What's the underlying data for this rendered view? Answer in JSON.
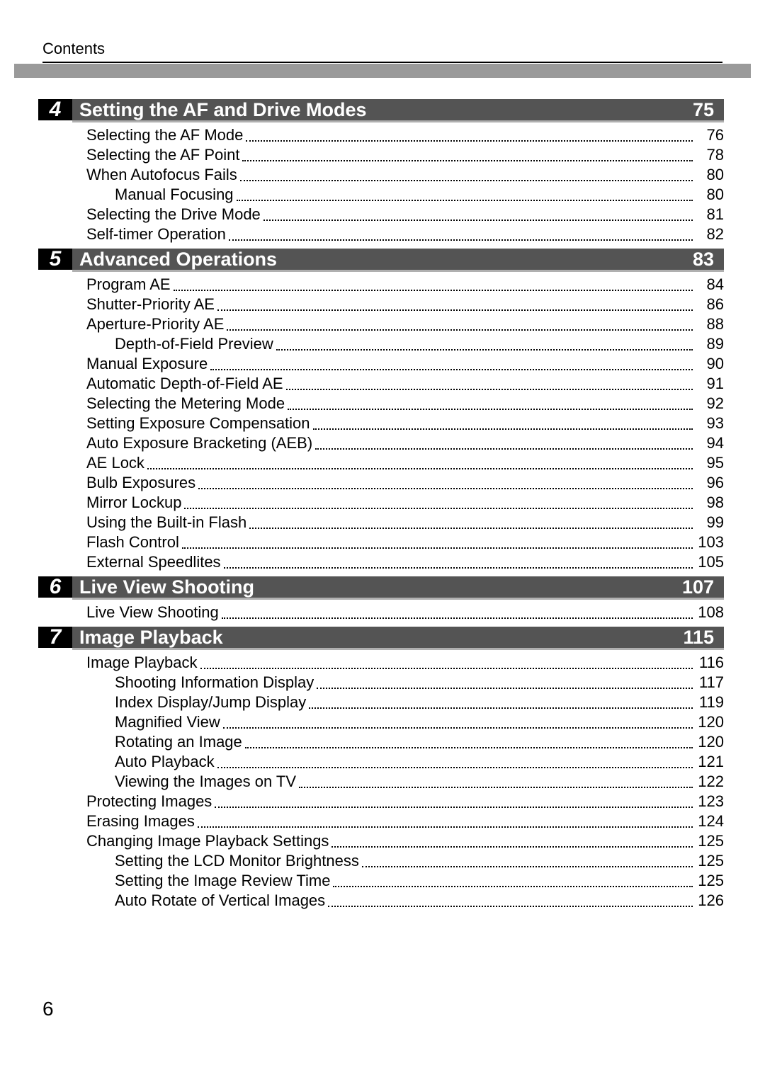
{
  "header": {
    "label": "Contents"
  },
  "page_number": "6",
  "colors": {
    "grey_bar": "#9a9a9a",
    "chapter_num_bg": "#000000",
    "chapter_title_bg": "#545454",
    "chapter_title_underline": "#b0b0b0",
    "text": "#000000"
  },
  "typography": {
    "body_fontsize": 22,
    "chapter_title_fontsize": 27,
    "chapter_num_fontsize": 30
  },
  "chapters": [
    {
      "number": "4",
      "title": "Setting the AF and Drive Modes",
      "page": "75",
      "entries": [
        {
          "label": "Selecting the AF Mode",
          "page": "76",
          "level": 0
        },
        {
          "label": "Selecting the AF Point",
          "page": "78",
          "level": 0
        },
        {
          "label": "When Autofocus Fails",
          "page": "80",
          "level": 0
        },
        {
          "label": "Manual Focusing",
          "page": "80",
          "level": 1
        },
        {
          "label": "Selecting the Drive Mode",
          "page": "81",
          "level": 0
        },
        {
          "label": "Self-timer Operation",
          "page": "82",
          "level": 0
        }
      ]
    },
    {
      "number": "5",
      "title": "Advanced Operations",
      "page": "83",
      "entries": [
        {
          "label": "Program AE",
          "page": "84",
          "level": 0
        },
        {
          "label": "Shutter-Priority AE",
          "page": "86",
          "level": 0
        },
        {
          "label": "Aperture-Priority AE",
          "page": "88",
          "level": 0
        },
        {
          "label": "Depth-of-Field Preview",
          "page": "89",
          "level": 1
        },
        {
          "label": "Manual Exposure",
          "page": "90",
          "level": 0
        },
        {
          "label": "Automatic Depth-of-Field AE",
          "page": "91",
          "level": 0
        },
        {
          "label": "Selecting the Metering Mode",
          "page": "92",
          "level": 0
        },
        {
          "label": "Setting Exposure Compensation",
          "page": "93",
          "level": 0
        },
        {
          "label": "Auto Exposure Bracketing (AEB)",
          "page": "94",
          "level": 0
        },
        {
          "label": "AE Lock",
          "page": "95",
          "level": 0
        },
        {
          "label": "Bulb Exposures",
          "page": "96",
          "level": 0
        },
        {
          "label": "Mirror Lockup",
          "page": "98",
          "level": 0
        },
        {
          "label": "Using the Built-in Flash",
          "page": "99",
          "level": 0
        },
        {
          "label": "Flash Control",
          "page": "103",
          "level": 0
        },
        {
          "label": "External Speedlites",
          "page": "105",
          "level": 0
        }
      ]
    },
    {
      "number": "6",
      "title": "Live View Shooting",
      "page": "107",
      "entries": [
        {
          "label": "Live View Shooting",
          "page": "108",
          "level": 0
        }
      ]
    },
    {
      "number": "7",
      "title": "Image Playback",
      "page": "115",
      "entries": [
        {
          "label": "Image Playback",
          "page": "116",
          "level": 0
        },
        {
          "label": "Shooting Information Display",
          "page": "117",
          "level": 1
        },
        {
          "label": "Index Display/Jump Display",
          "page": "119",
          "level": 1
        },
        {
          "label": "Magnified View",
          "page": "120",
          "level": 1
        },
        {
          "label": "Rotating an Image",
          "page": "120",
          "level": 1
        },
        {
          "label": "Auto Playback",
          "page": "121",
          "level": 1
        },
        {
          "label": "Viewing the Images on TV",
          "page": "122",
          "level": 1
        },
        {
          "label": "Protecting Images",
          "page": "123",
          "level": 0
        },
        {
          "label": "Erasing Images",
          "page": "124",
          "level": 0
        },
        {
          "label": "Changing Image Playback Settings",
          "page": "125",
          "level": 0
        },
        {
          "label": "Setting the LCD Monitor Brightness",
          "page": "125",
          "level": 1
        },
        {
          "label": "Setting the Image Review Time",
          "page": "125",
          "level": 1
        },
        {
          "label": "Auto Rotate of Vertical Images",
          "page": "126",
          "level": 1
        }
      ]
    }
  ]
}
